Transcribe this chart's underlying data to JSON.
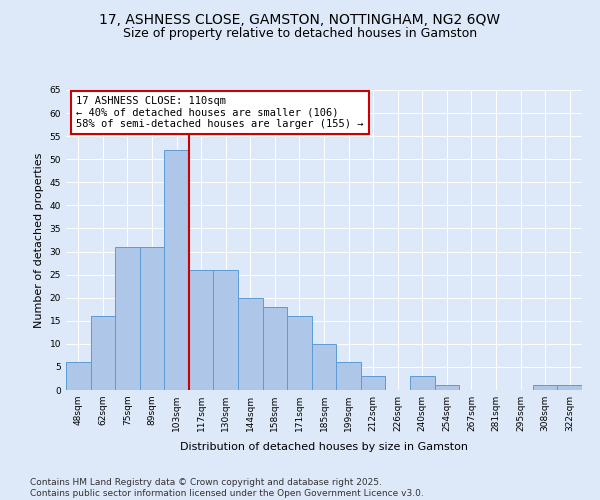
{
  "title": "17, ASHNESS CLOSE, GAMSTON, NOTTINGHAM, NG2 6QW",
  "subtitle": "Size of property relative to detached houses in Gamston",
  "xlabel": "Distribution of detached houses by size in Gamston",
  "ylabel": "Number of detached properties",
  "bar_labels": [
    "48sqm",
    "62sqm",
    "75sqm",
    "89sqm",
    "103sqm",
    "117sqm",
    "130sqm",
    "144sqm",
    "158sqm",
    "171sqm",
    "185sqm",
    "199sqm",
    "212sqm",
    "226sqm",
    "240sqm",
    "254sqm",
    "267sqm",
    "281sqm",
    "295sqm",
    "308sqm",
    "322sqm"
  ],
  "bar_values": [
    6,
    16,
    31,
    31,
    52,
    26,
    26,
    20,
    18,
    16,
    10,
    6,
    3,
    0,
    3,
    1,
    0,
    0,
    0,
    1,
    1
  ],
  "bar_color": "#aec6e8",
  "bar_edge_color": "#5b9bd5",
  "vline_x": 4.5,
  "vline_color": "#cc0000",
  "annotation_text": "17 ASHNESS CLOSE: 110sqm\n← 40% of detached houses are smaller (106)\n58% of semi-detached houses are larger (155) →",
  "annotation_box_color": "#ffffff",
  "annotation_box_edge": "#cc0000",
  "ylim": [
    0,
    65
  ],
  "yticks": [
    0,
    5,
    10,
    15,
    20,
    25,
    30,
    35,
    40,
    45,
    50,
    55,
    60,
    65
  ],
  "background_color": "#dde8f8",
  "footer_line1": "Contains HM Land Registry data © Crown copyright and database right 2025.",
  "footer_line2": "Contains public sector information licensed under the Open Government Licence v3.0.",
  "title_fontsize": 10,
  "subtitle_fontsize": 9,
  "xlabel_fontsize": 8,
  "ylabel_fontsize": 8,
  "tick_fontsize": 6.5,
  "annotation_fontsize": 7.5,
  "footer_fontsize": 6.5
}
